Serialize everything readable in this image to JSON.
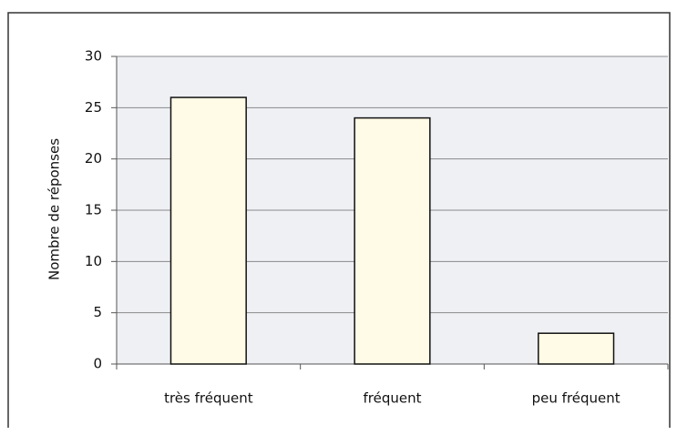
{
  "chart_data": {
    "type": "bar",
    "y_label": "Nombre de réponses",
    "categories": [
      "très fréquent",
      "fréquent",
      "peu fréquent"
    ],
    "values": [
      26,
      24,
      3
    ],
    "color": "#fffbe6",
    "ylim": [
      0,
      30
    ],
    "yticks": [
      0,
      5,
      10,
      15,
      20,
      25,
      30
    ],
    "grid": true
  }
}
